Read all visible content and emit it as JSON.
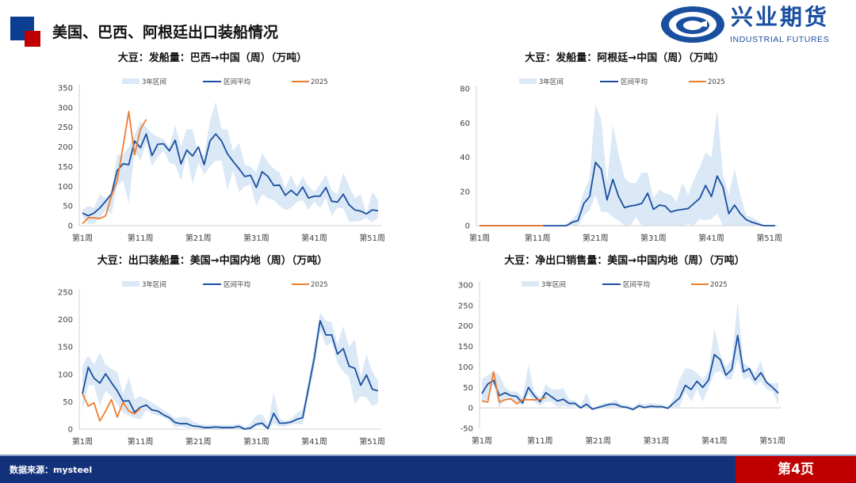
{
  "header": {
    "title": "美国、巴西、阿根廷出口装船情况"
  },
  "logo": {
    "name_cn": "兴业期货",
    "name_en": "INDUSTRIAL FUTURES",
    "icon": "swirl-logo-icon"
  },
  "footer": {
    "source": "数据来源：mysteel",
    "page": "第4页"
  },
  "colors": {
    "band": "#dbe8f6",
    "average": "#1a4fa0",
    "y2025": "#ed7d31",
    "brand_blue": "#13317a",
    "brand_red": "#c00000"
  },
  "chart_data": [
    {
      "type": "area+line",
      "title": "大豆：发船量：巴西→中国（周）（万吨）",
      "legend": [
        "3年区间",
        "区间平均",
        "2025"
      ],
      "legend_position": "top",
      "x_ticks": [
        "第1周",
        "第11周",
        "第21周",
        "第31周",
        "第41周",
        "第51周"
      ],
      "ylim": [
        0,
        350
      ],
      "yticks": [
        0,
        50,
        100,
        150,
        200,
        250,
        300,
        350
      ],
      "weeks": 52,
      "band_low": [
        25,
        5,
        5,
        20,
        40,
        30,
        100,
        115,
        55,
        190,
        165,
        210,
        150,
        175,
        190,
        160,
        155,
        115,
        180,
        105,
        160,
        130,
        150,
        165,
        165,
        90,
        140,
        85,
        100,
        105,
        50,
        80,
        70,
        65,
        50,
        40,
        45,
        60,
        65,
        40,
        60,
        45,
        70,
        25,
        45,
        45,
        10,
        10,
        12,
        20,
        8,
        20
      ],
      "band_high": [
        40,
        50,
        45,
        80,
        70,
        85,
        180,
        180,
        200,
        230,
        265,
        250,
        235,
        225,
        220,
        200,
        255,
        200,
        245,
        245,
        180,
        180,
        265,
        315,
        245,
        245,
        190,
        210,
        155,
        150,
        135,
        185,
        160,
        145,
        135,
        95,
        130,
        95,
        125,
        100,
        85,
        105,
        130,
        90,
        80,
        135,
        100,
        70,
        80,
        30,
        85,
        65
      ],
      "average": [
        32,
        25,
        32,
        45,
        62,
        80,
        140,
        157,
        155,
        215,
        198,
        233,
        178,
        207,
        208,
        190,
        217,
        157,
        192,
        177,
        200,
        155,
        215,
        233,
        215,
        183,
        163,
        145,
        125,
        128,
        97,
        137,
        125,
        102,
        103,
        77,
        90,
        77,
        98,
        70,
        75,
        75,
        97,
        62,
        60,
        80,
        53,
        40,
        37,
        30,
        40,
        38
      ],
      "y2025": [
        5,
        20,
        20,
        18,
        25,
        75,
        115,
        200,
        290,
        180,
        245,
        270
      ]
    },
    {
      "type": "area+line",
      "title": "大豆：发船量：阿根廷→中国（周）（万吨）",
      "legend": [
        "3年区间",
        "区间平均",
        "2025"
      ],
      "legend_position": "top",
      "x_ticks": [
        "第1周",
        "第11周",
        "第21周",
        "第31周",
        "第41周",
        "第51周"
      ],
      "ylim": [
        0,
        80
      ],
      "yticks": [
        0,
        20,
        40,
        60,
        80
      ],
      "weeks": 52,
      "band_low": [
        0,
        0,
        0,
        0,
        0,
        0,
        0,
        0,
        0,
        0,
        0,
        0,
        0,
        0,
        0,
        0,
        0,
        0,
        6,
        9,
        18,
        8,
        8,
        5,
        3,
        0,
        0,
        5,
        0,
        0,
        0,
        0,
        0,
        0,
        0,
        0,
        1,
        0,
        4,
        3,
        4,
        7,
        0,
        0,
        0,
        0,
        0,
        0,
        0,
        0,
        0,
        0
      ],
      "band_high": [
        0,
        0,
        0,
        0,
        0,
        0,
        0,
        0,
        0,
        0,
        0,
        0,
        0,
        0,
        0,
        1,
        4,
        8,
        20,
        28,
        71,
        62,
        25,
        59,
        42,
        28,
        25,
        25,
        31,
        31,
        16,
        21,
        19,
        18,
        14,
        25,
        18,
        27,
        34,
        43,
        40,
        68,
        30,
        18,
        33,
        18,
        6,
        5,
        3,
        0,
        0,
        0
      ],
      "average": [
        0,
        0,
        0,
        0,
        0,
        0,
        0,
        0,
        0,
        0,
        0,
        0,
        0,
        0,
        0,
        0,
        2,
        3,
        13,
        17,
        37,
        33,
        15,
        27,
        17,
        10.5,
        11.5,
        12,
        13,
        19,
        9.5,
        12,
        11.5,
        8,
        9,
        9.5,
        10,
        13,
        16,
        23.5,
        17,
        29,
        22.5,
        7,
        12,
        7,
        3.5,
        2,
        1,
        0,
        0,
        0
      ],
      "y2025": [
        0,
        0,
        0,
        0,
        0,
        0,
        0,
        0,
        0,
        0,
        0,
        0
      ]
    },
    {
      "type": "area+line",
      "title": "大豆：出口装船量：美国→中国内地（周）（万吨）",
      "legend": [
        "3年区间",
        "区间平均",
        "2025"
      ],
      "legend_position": "top",
      "x_ticks": [
        "第1周",
        "第11周",
        "第21周",
        "第31周",
        "第41周",
        "第51周"
      ],
      "ylim": [
        0,
        250
      ],
      "yticks": [
        0,
        50,
        100,
        150,
        200,
        250
      ],
      "weeks": 52,
      "band_low": [
        35,
        80,
        80,
        42,
        70,
        60,
        45,
        30,
        25,
        20,
        18,
        35,
        28,
        25,
        22,
        15,
        3,
        5,
        2,
        2,
        0,
        0,
        0,
        0,
        0,
        0,
        0,
        0,
        0,
        0,
        5,
        5,
        0,
        10,
        5,
        5,
        8,
        10,
        8,
        60,
        110,
        180,
        152,
        158,
        120,
        105,
        95,
        45,
        60,
        58,
        42,
        48
      ],
      "band_high": [
        115,
        135,
        118,
        140,
        118,
        110,
        105,
        65,
        95,
        55,
        60,
        55,
        48,
        42,
        35,
        28,
        20,
        22,
        22,
        15,
        10,
        8,
        8,
        8,
        8,
        8,
        8,
        10,
        3,
        10,
        25,
        28,
        8,
        68,
        20,
        15,
        18,
        30,
        35,
        90,
        150,
        213,
        198,
        195,
        155,
        188,
        150,
        165,
        95,
        137,
        105,
        88
      ],
      "average": [
        65,
        113,
        93,
        84,
        101,
        85,
        70,
        51,
        52,
        31,
        40,
        44,
        35,
        33,
        26,
        21,
        12,
        10,
        10,
        6,
        5,
        3,
        3,
        4,
        3,
        3,
        3,
        5,
        0,
        2,
        9,
        11,
        1,
        29,
        11,
        11,
        13,
        18,
        21,
        75,
        130,
        198,
        172,
        172,
        137,
        147,
        115,
        111,
        80,
        99,
        73,
        70
      ],
      "y2025": [
        65,
        42,
        48,
        15,
        33,
        54,
        22,
        49,
        33,
        28,
        38
      ]
    },
    {
      "type": "area+line",
      "title": "大豆：净出口销售量：美国→中国内地（周）（万吨）",
      "legend": [
        "3年区间",
        "区间平均",
        "2025"
      ],
      "legend_position": "top",
      "x_ticks": [
        "第1周",
        "第11周",
        "第21周",
        "第31周",
        "第41周",
        "第51周"
      ],
      "ylim": [
        -50,
        300
      ],
      "yticks": [
        -50,
        0,
        50,
        100,
        150,
        200,
        250,
        300
      ],
      "weeks": 52,
      "band_low": [
        15,
        20,
        60,
        0,
        25,
        20,
        15,
        5,
        35,
        15,
        5,
        15,
        15,
        2,
        5,
        2,
        5,
        -2,
        2,
        -5,
        -2,
        0,
        2,
        2,
        0,
        -2,
        -6,
        0,
        -2,
        0,
        0,
        0,
        -3,
        2,
        2,
        40,
        15,
        45,
        15,
        50,
        85,
        90,
        70,
        70,
        120,
        70,
        75,
        55,
        65,
        45,
        40,
        8
      ],
      "band_high": [
        70,
        80,
        90,
        80,
        50,
        40,
        40,
        25,
        105,
        40,
        25,
        58,
        45,
        45,
        48,
        20,
        18,
        5,
        38,
        0,
        5,
        12,
        12,
        20,
        8,
        8,
        0,
        12,
        8,
        12,
        10,
        8,
        2,
        25,
        70,
        97,
        95,
        85,
        70,
        90,
        195,
        130,
        100,
        120,
        260,
        110,
        100,
        85,
        115,
        65,
        60,
        62
      ],
      "average": [
        35,
        58,
        67,
        30,
        37,
        30,
        28,
        12,
        50,
        30,
        15,
        37,
        27,
        17,
        21,
        11,
        11,
        0,
        9,
        -3,
        1,
        5,
        9,
        9,
        3,
        1,
        -4,
        5,
        1,
        4,
        3,
        3,
        -1,
        12,
        24,
        55,
        45,
        65,
        50,
        68,
        130,
        118,
        80,
        94,
        177,
        88,
        96,
        68,
        86,
        62,
        50,
        36
      ],
      "y2025": [
        17,
        14,
        88,
        14,
        20,
        22,
        10,
        20,
        20,
        20,
        20,
        26
      ]
    }
  ]
}
